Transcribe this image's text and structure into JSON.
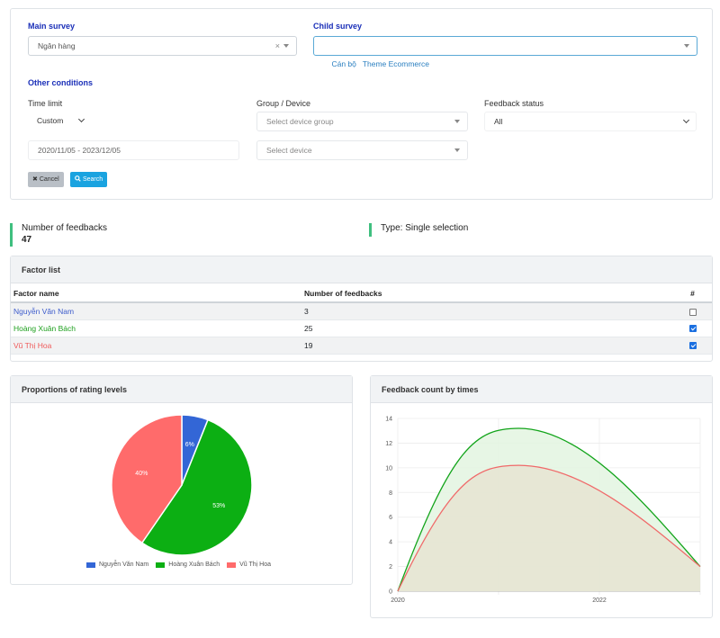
{
  "filters": {
    "main_survey_label": "Main survey",
    "main_survey_value": "Ngân hàng",
    "child_survey_label": "Child survey",
    "child_survey_value": "Cán bộ   Theme Ecommerce",
    "other_conditions_label": "Other conditions",
    "time_limit_label": "Time limit",
    "time_limit_value": "Custom",
    "date_range": "2020/11/05 - 2023/12/05",
    "group_device_label": "Group / Device",
    "device_group_placeholder": "Select device group",
    "device_placeholder": "Select device",
    "feedback_status_label": "Feedback status",
    "feedback_status_value": "All",
    "cancel_label": "Cancel",
    "search_label": "Search"
  },
  "stats": {
    "feedbacks_label": "Number of feedbacks",
    "feedbacks_value": "47",
    "type_label": "Type: Single selection"
  },
  "factor_list": {
    "title": "Factor list",
    "columns": [
      "Factor name",
      "Number of feedbacks",
      "#"
    ],
    "rows": [
      {
        "name": "Nguyễn Văn Nam",
        "count": "3",
        "checked": false,
        "color": "#3d5ccc"
      },
      {
        "name": "Hoàng Xuân Bách",
        "count": "25",
        "checked": true,
        "color": "#1ea01e"
      },
      {
        "name": "Vũ Thị Hoa",
        "count": "19",
        "checked": true,
        "color": "#f05a5a"
      }
    ]
  },
  "pie_card": {
    "title": "Proportions of rating levels"
  },
  "line_card": {
    "title": "Feedback count by times"
  },
  "chart_data": [
    {
      "type": "pie",
      "title": "Proportions of rating levels",
      "labels": [
        "Nguyễn Văn Nam",
        "Hoàng Xuân Bách",
        "Vũ Thị Hoa"
      ],
      "values": [
        6,
        53,
        40
      ],
      "value_labels": [
        "6%",
        "53%",
        "40%"
      ],
      "colors": [
        "#3366d6",
        "#0caf13",
        "#ff6b6b"
      ],
      "legend": "bottom"
    },
    {
      "type": "area",
      "title": "Feedback count by times",
      "x_ticks": [
        "2020",
        "2022"
      ],
      "ylim": [
        0,
        14
      ],
      "y_ticks": [
        0,
        2,
        4,
        6,
        8,
        10,
        12,
        14
      ],
      "grid": true,
      "series": [
        {
          "color": "#12a41a",
          "fill": "#e3f5e0",
          "x": [
            0,
            0.4,
            1
          ],
          "y": [
            0,
            13.2,
            2
          ]
        },
        {
          "color": "#f06a6a",
          "fill": "#e6e4d2",
          "x": [
            0,
            0.4,
            1
          ],
          "y": [
            0,
            10.2,
            2
          ]
        }
      ]
    }
  ]
}
